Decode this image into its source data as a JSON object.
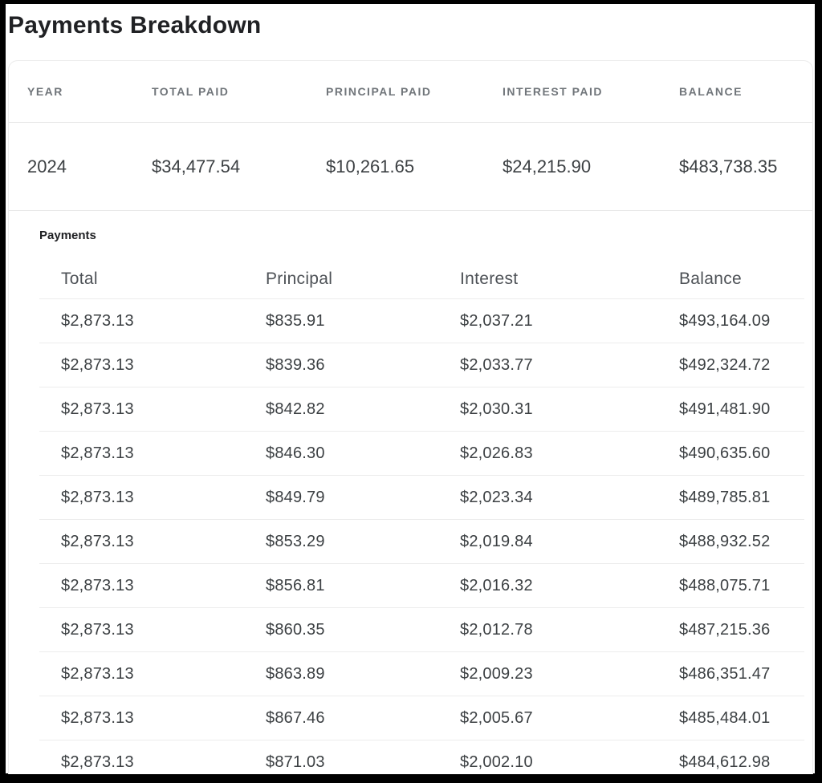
{
  "title": "Payments Breakdown",
  "summary_table": {
    "headers": [
      "YEAR",
      "TOTAL PAID",
      "PRINCIPAL PAID",
      "INTEREST PAID",
      "BALANCE"
    ],
    "row": {
      "year": "2024",
      "total_paid": "$34,477.54",
      "principal_paid": "$10,261.65",
      "interest_paid": "$24,215.90",
      "balance": "$483,738.35"
    }
  },
  "payments_section": {
    "label": "Payments",
    "headers": [
      "Total",
      "Principal",
      "Interest",
      "Balance"
    ],
    "rows": [
      [
        "$2,873.13",
        "$835.91",
        "$2,037.21",
        "$493,164.09"
      ],
      [
        "$2,873.13",
        "$839.36",
        "$2,033.77",
        "$492,324.72"
      ],
      [
        "$2,873.13",
        "$842.82",
        "$2,030.31",
        "$491,481.90"
      ],
      [
        "$2,873.13",
        "$846.30",
        "$2,026.83",
        "$490,635.60"
      ],
      [
        "$2,873.13",
        "$849.79",
        "$2,023.34",
        "$489,785.81"
      ],
      [
        "$2,873.13",
        "$853.29",
        "$2,019.84",
        "$488,932.52"
      ],
      [
        "$2,873.13",
        "$856.81",
        "$2,016.32",
        "$488,075.71"
      ],
      [
        "$2,873.13",
        "$860.35",
        "$2,012.78",
        "$487,215.36"
      ],
      [
        "$2,873.13",
        "$863.89",
        "$2,009.23",
        "$486,351.47"
      ],
      [
        "$2,873.13",
        "$867.46",
        "$2,005.67",
        "$485,484.01"
      ],
      [
        "$2,873.13",
        "$871.03",
        "$2,002.10",
        "$484,612.98"
      ]
    ]
  },
  "colors": {
    "title_text": "#202124",
    "header_text": "#70757a",
    "value_text": "#3c4043",
    "separator": "#e6e6e6",
    "outer_border": "#000000"
  }
}
